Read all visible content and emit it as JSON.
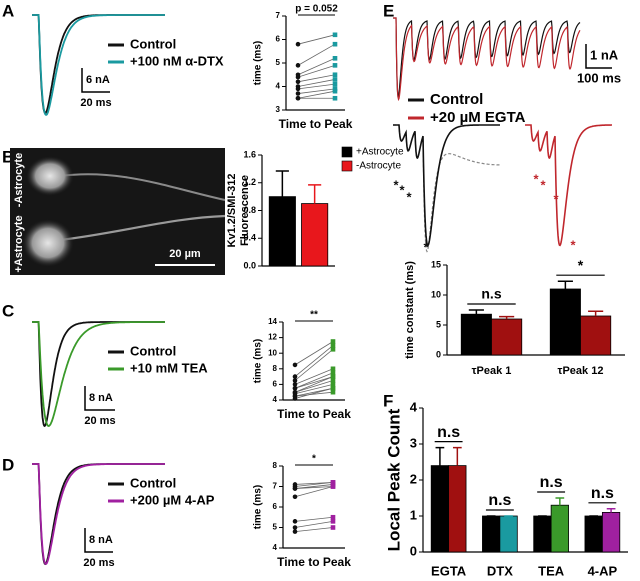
{
  "chart_data": [
    {
      "type": "trace",
      "label": "A",
      "series": [
        {
          "name": "Control",
          "color": "#111111"
        },
        {
          "name": "+100 nM α-DTX",
          "color": "#1a9aa0"
        }
      ],
      "scale_bar": {
        "y": "6 nA",
        "x": "20 ms"
      }
    },
    {
      "type": "paired",
      "ylabel": "time (ms)",
      "xlabel": "Time to Peak",
      "annotation": "p = 0.052",
      "ylim": [
        3,
        7
      ],
      "yticks": [
        3,
        4,
        5,
        6,
        7
      ],
      "series": [
        {
          "color": "#111111",
          "marker": "circle",
          "values": [
            5.8,
            4.9,
            4.5,
            4.4,
            4.2,
            4.0,
            3.9,
            3.7,
            3.5,
            3.5
          ]
        },
        {
          "color": "#1a9aa0",
          "marker": "square",
          "values": [
            6.2,
            5.8,
            5.2,
            4.9,
            4.5,
            4.3,
            4.1,
            3.9,
            3.8,
            3.5
          ]
        }
      ]
    },
    {
      "type": "image",
      "label": "B",
      "texts": [
        "-Astrocyte",
        "+Astrocyte"
      ],
      "scale_bar": "20 µm"
    },
    {
      "type": "bar",
      "ylabel": [
        "Kv1.2/SMI-312",
        "Fluorescence"
      ],
      "ylim": [
        0,
        1.6
      ],
      "yticks": [
        {
          "value": 0,
          "label": "0.0"
        },
        0.4,
        0.8,
        1.2,
        1.6
      ],
      "legend": "top-right",
      "series": [
        {
          "name": "+Astrocyte",
          "color": "#000000",
          "values": [
            1.0
          ],
          "errors": [
            0.37
          ]
        },
        {
          "name": "-Astrocyte",
          "color": "#e8171c",
          "values": [
            0.9
          ],
          "errors": [
            0.27
          ]
        }
      ]
    },
    {
      "type": "trace",
      "label": "C",
      "series": [
        {
          "name": "Control",
          "color": "#111111"
        },
        {
          "name": "+10 mM TEA",
          "color": "#3a9a2a"
        }
      ],
      "scale_bar": {
        "y": "8 nA",
        "x": "20 ms"
      }
    },
    {
      "type": "paired",
      "ylabel": "time (ms)",
      "xlabel": "Time to Peak",
      "annotation": "**",
      "ylim": [
        4,
        14
      ],
      "yticks": [
        4,
        6,
        8,
        10,
        12,
        14
      ],
      "series": [
        {
          "color": "#111111",
          "marker": "circle",
          "values": [
            8.5,
            7.0,
            6.5,
            6.0,
            5.5,
            5.5,
            5.0,
            5.0,
            4.8,
            4.5,
            4.5,
            4.2
          ]
        },
        {
          "color": "#3a9a2a",
          "marker": "square",
          "values": [
            11.5,
            11.0,
            10.5,
            8.0,
            7.5,
            7.0,
            7.0,
            6.5,
            6.0,
            5.5,
            5.0,
            5.5
          ]
        }
      ]
    },
    {
      "type": "trace",
      "label": "D",
      "series": [
        {
          "name": "Control",
          "color": "#111111"
        },
        {
          "name": "+200 µM 4-AP",
          "color": "#a020a0"
        }
      ],
      "scale_bar": {
        "y": "8 nA",
        "x": "20 ms"
      }
    },
    {
      "type": "paired",
      "ylabel": "time (ms)",
      "xlabel": "Time to Peak",
      "annotation": "*",
      "ylim": [
        4,
        8
      ],
      "yticks": [
        4,
        5,
        6,
        7,
        8
      ],
      "series": [
        {
          "color": "#111111",
          "marker": "circle",
          "values": [
            7.1,
            7.0,
            6.9,
            6.9,
            6.5,
            5.3,
            5.0,
            4.8
          ]
        },
        {
          "color": "#a020a0",
          "marker": "square",
          "values": [
            7.2,
            7.2,
            7.1,
            7.0,
            7.0,
            5.5,
            5.3,
            5.0
          ]
        }
      ]
    },
    {
      "type": "train",
      "label": "E",
      "series": [
        {
          "name": "Control",
          "color": "#111111"
        },
        {
          "name": "+20 µM EGTA",
          "color": "#c0272d"
        }
      ],
      "scale_bar": {
        "y": "1 nA",
        "x": "100 ms"
      },
      "peak_marks": [
        "*",
        "*",
        "*",
        "*",
        "*",
        "*",
        "*",
        "*"
      ]
    },
    {
      "type": "bar",
      "ylabel": "time constant (ms)",
      "categories": [
        "τPeak 1",
        "τPeak 12"
      ],
      "ylim": [
        0,
        15
      ],
      "yticks": [
        0,
        5,
        10,
        15
      ],
      "annotations": [
        "n.s",
        "*"
      ],
      "series": [
        {
          "color": "#000000",
          "values": [
            6.8,
            11.0
          ],
          "errors": [
            0.7,
            1.3
          ]
        },
        {
          "color": "#a01010",
          "values": [
            6.0,
            6.5
          ],
          "errors": [
            0.4,
            0.8
          ]
        }
      ]
    },
    {
      "type": "bar",
      "label": "F",
      "ylabel": "Local Peak Count",
      "categories": [
        "EGTA",
        "DTX",
        "TEA",
        "4-AP"
      ],
      "ylim": [
        0,
        4
      ],
      "yticks": [
        0,
        1,
        2,
        3,
        4
      ],
      "annotations": [
        "n.s",
        "n.s",
        "n.s",
        "n.s"
      ],
      "series": [
        {
          "color": "#000000",
          "values": [
            2.4,
            1.0,
            1.0,
            1.0
          ],
          "errors": [
            0.5,
            0,
            0,
            0
          ]
        },
        {
          "colors": [
            "#a01010",
            "#1a9aa0",
            "#3a9a2a",
            "#a020a0"
          ],
          "values": [
            2.4,
            1.0,
            1.3,
            1.1
          ],
          "errors": [
            0.5,
            0,
            0.2,
            0.1
          ]
        }
      ]
    }
  ]
}
